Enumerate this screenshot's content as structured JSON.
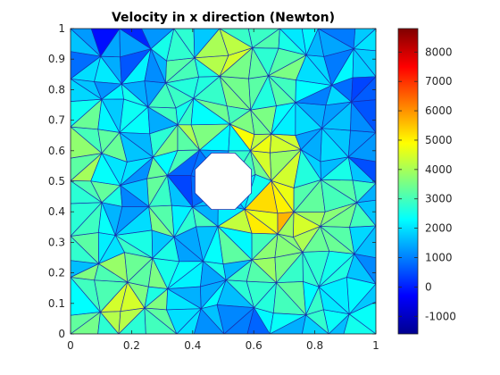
{
  "chart_data": {
    "type": "heatmap",
    "title": "Velocity in x direction (Newton)",
    "xlabel": "",
    "ylabel": "",
    "xlim": [
      0,
      1
    ],
    "ylim": [
      0,
      1
    ],
    "x_ticks": [
      "0",
      "0.2",
      "0.4",
      "0.6",
      "0.8",
      "1"
    ],
    "y_ticks": [
      "0",
      "0.1",
      "0.2",
      "0.3",
      "0.4",
      "0.5",
      "0.6",
      "0.7",
      "0.8",
      "0.9",
      "1"
    ],
    "colorbar": {
      "range": [
        -1600,
        8800
      ],
      "ticks": [
        "-1000",
        "0",
        "1000",
        "2000",
        "3000",
        "4000",
        "5000",
        "6000",
        "7000",
        "8000"
      ],
      "colormap": "jet"
    },
    "hole": {
      "shape": "octagon",
      "center": [
        0.5,
        0.5
      ],
      "radius": 0.1
    },
    "mesh": "triangular",
    "grid": false,
    "colors": {
      "mesh_line": "#1a2aa8",
      "hole": "#ffffff",
      "axis": "#262626"
    }
  }
}
